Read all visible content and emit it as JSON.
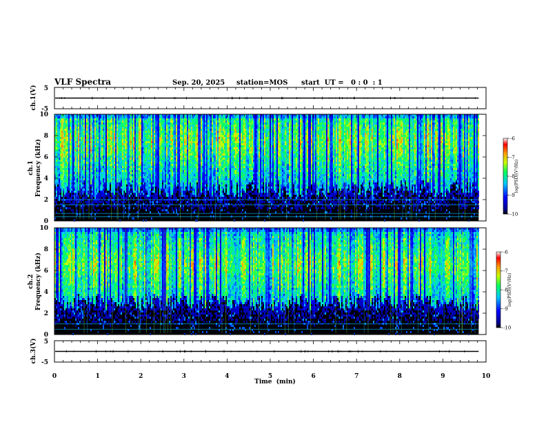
{
  "header": {
    "title": "VLF Spectra",
    "date": "Sep. 20, 2025",
    "station": "station=MOS",
    "start": "start  UT =   0 : 0  : 1"
  },
  "chart_data": [
    {
      "type": "line",
      "name": "ch1-waveform",
      "ylabel": "ch.1(V)",
      "ylim": [
        -5,
        5
      ],
      "yticks": [
        "5",
        "-5"
      ],
      "level": 0
    },
    {
      "type": "heatmap",
      "name": "ch1-spectrogram",
      "ylabel_line1": "ch.1",
      "ylabel_line2": "Frequency (kHz)",
      "ylim": [
        0,
        10
      ],
      "yticks": [
        "0",
        "2",
        "4",
        "6",
        "8",
        "10"
      ],
      "x_extent_min": 9.83,
      "colorbar": {
        "label": "log(PSD)(V²/Hz)",
        "ticks": [
          "-6",
          "-7",
          "-8",
          "-9",
          "-10"
        ],
        "range": [
          -10,
          -6
        ]
      },
      "band_khz": [
        3,
        10
      ],
      "peak_khz": 7.5,
      "lines_khz": [
        0.4,
        0.7,
        1.5,
        2.0
      ]
    },
    {
      "type": "heatmap",
      "name": "ch2-spectrogram",
      "ylabel_line1": "ch.2",
      "ylabel_line2": "Frequency (kHz)",
      "ylim": [
        0,
        10
      ],
      "yticks": [
        "0",
        "2",
        "4",
        "6",
        "8",
        "10"
      ],
      "x_extent_min": 9.83,
      "colorbar": {
        "label": "log(PSD)(V²/Hz)",
        "ticks": [
          "-6",
          "-7",
          "-8",
          "-9",
          "-10"
        ],
        "range": [
          -10,
          -6
        ]
      },
      "band_khz": [
        3,
        10
      ],
      "peak_khz": 6.5,
      "lines_khz": [
        0.5,
        1.0
      ]
    },
    {
      "type": "line",
      "name": "ch3-waveform",
      "ylabel": "ch.3(V)",
      "ylim": [
        -5,
        5
      ],
      "yticks": [
        "5",
        "-5"
      ],
      "level": 0
    }
  ],
  "xaxis": {
    "label": "Time  (min)",
    "range": [
      0,
      10
    ],
    "ticks": [
      "0",
      "1",
      "2",
      "3",
      "4",
      "5",
      "6",
      "7",
      "8",
      "9",
      "10"
    ]
  }
}
